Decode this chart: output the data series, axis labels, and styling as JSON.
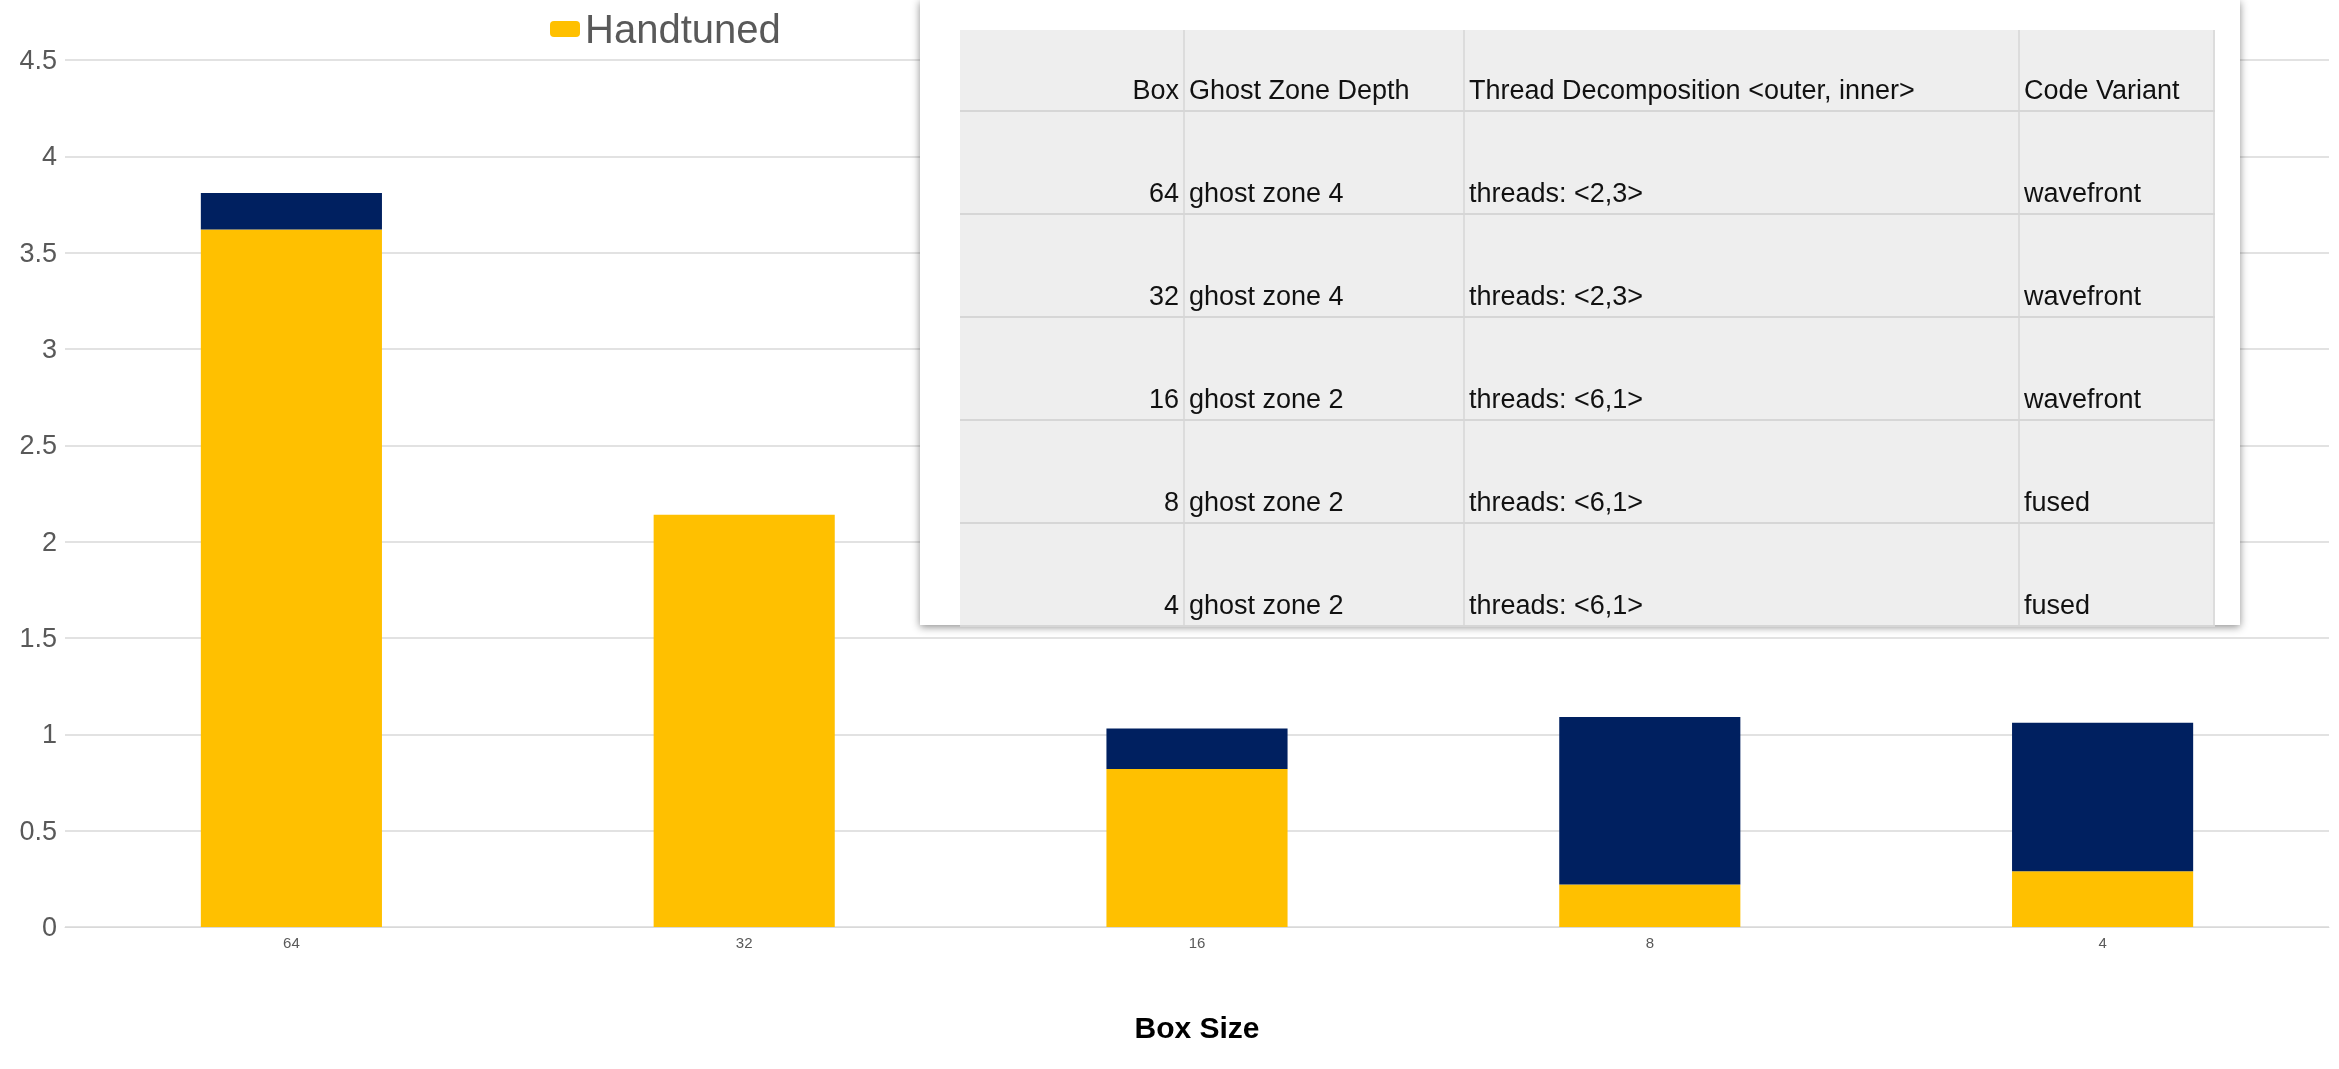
{
  "chart_data": [
    {
      "type": "bar",
      "stacked": true,
      "xlabel": "Box Size",
      "categories": [
        "64",
        "32",
        "16",
        "8",
        "4"
      ],
      "series": [
        {
          "name": "Handtuned",
          "color": "#ffc000",
          "values": [
            3.62,
            2.14,
            0.82,
            0.22,
            0.29
          ]
        },
        {
          "color": "#002060",
          "values": [
            0.19,
            0,
            0.21,
            0.87,
            0.77
          ]
        }
      ],
      "ylim": [
        0,
        4.5
      ],
      "yticks": [
        0,
        0.5,
        1,
        1.5,
        2,
        2.5,
        3,
        3.5,
        4,
        4.5
      ],
      "grid": "y",
      "legend": "top left"
    },
    {
      "type": "other",
      "annotations": [
        "Box",
        "Ghost Zone Depth",
        "Thread Decomposition <outer, inner>",
        "Code Variant",
        "64",
        "ghost zone 4",
        "threads: <2,3>",
        "wavefront",
        "32",
        "ghost zone 4",
        "threads: <2,3>",
        "wavefront",
        "16",
        "ghost zone 2",
        "threads: <6,1>",
        "wavefront",
        "8",
        "ghost zone 2",
        "threads: <6,1>",
        "fused",
        "4",
        "ghost zone 2",
        "threads: <6,1>",
        "fused"
      ]
    }
  ]
}
